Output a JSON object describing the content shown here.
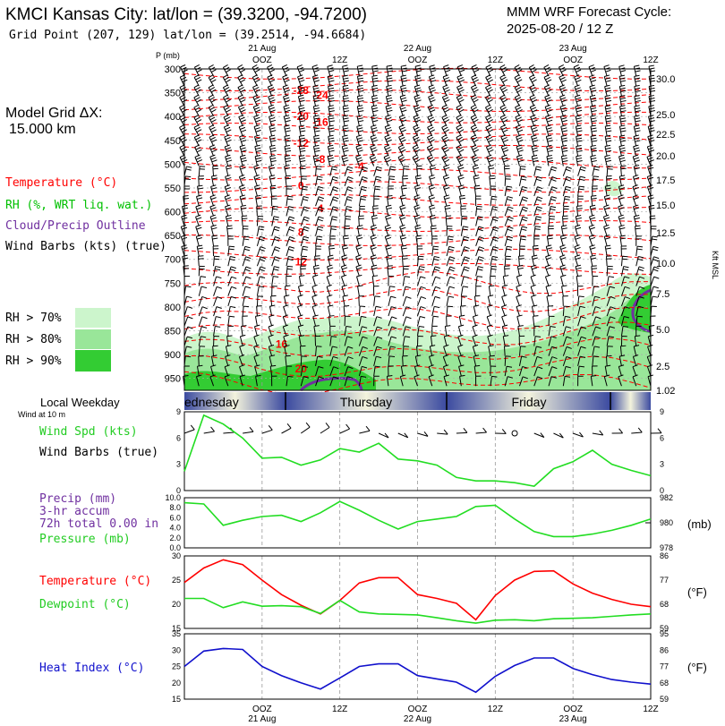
{
  "header": {
    "title": "KMCI Kansas City:  lat/lon = (39.3200, -94.7200)",
    "subtitle": "Grid Point (207, 129) lat/lon = (39.2514, -94.6684)",
    "cycle_title": "MMM WRF Forecast Cycle:",
    "cycle_value": "2025-08-20 / 12  Z"
  },
  "time_axis": {
    "labels": [
      "21 Aug\nOOZ",
      "12Z",
      "22 Aug\nOOZ",
      "12Z",
      "23 Aug\nOOZ",
      "12Z"
    ],
    "top_dates": [
      "21 Aug",
      "22 Aug",
      "23 Aug"
    ],
    "top_hours": [
      "OOZ",
      "12Z",
      "OOZ",
      "12Z",
      "OOZ",
      "12Z"
    ],
    "bottom_hours": [
      "OOZ",
      "12Z",
      "OOZ",
      "12Z",
      "OOZ",
      "12Z"
    ],
    "bottom_dates": [
      "21 Aug",
      "22 Aug",
      "23 Aug"
    ]
  },
  "left_panel": {
    "grid_label": "Model Grid ΔX:",
    "grid_value": "15.000 km",
    "legend_temperature": "Temperature (°C)",
    "legend_rh": "RH (%, WRT liq. wat.)",
    "legend_cloud": "Cloud/Precip Outline",
    "legend_wind": "Wind Barbs (kts) (true)",
    "rh_levels": [
      "RH > 70%",
      "RH > 80%",
      "RH > 90%"
    ],
    "local_weekday": "Local Weekday",
    "wind_at_10m": "Wind at 10 m",
    "wind_spd": "Wind Spd (kts)",
    "wind_barbs": "Wind Barbs (true)",
    "precip": "Precip (mm)",
    "precip_accum": "3-hr accum",
    "precip_total": "72h total 0.00 in",
    "pressure": "Pressure (mb)",
    "temperature": "Temperature (°C)",
    "dewpoint": "Dewpoint (°C)",
    "heat_index": "Heat Index (°C)"
  },
  "colors": {
    "temperature": "#ff0000",
    "rh_label": "#ff0000",
    "rh_legend_text": "#00c000",
    "cloud": "#7030a0",
    "green": "#22dd22",
    "heat": "#1010cc",
    "rh70": "#ccf5cc",
    "rh80": "#99e699",
    "rh90": "#33cc33"
  },
  "chart_data": [
    {
      "type": "heatmap",
      "panel": "upper-air cross section",
      "ylabel_left": "P (mb)",
      "ylabel_right": "Kft MSL",
      "pressure_ticks": [
        300,
        350,
        400,
        450,
        500,
        550,
        600,
        650,
        700,
        750,
        800,
        850,
        900,
        950
      ],
      "kft_ticks": [
        "30.0",
        "25.0",
        "22.5",
        "20.0",
        "17.5",
        "15.0",
        "12.5",
        "10.0",
        "7.5",
        "5.0",
        "2.5",
        "1.02"
      ],
      "temperature_labels": [
        {
          "value": "-28",
          "hour": 18,
          "p": 345
        },
        {
          "value": "-24",
          "hour": 21,
          "p": 355
        },
        {
          "value": "-20",
          "hour": 18,
          "p": 400
        },
        {
          "value": "-16",
          "hour": 21,
          "p": 412
        },
        {
          "value": "-12",
          "hour": 18,
          "p": 456
        },
        {
          "value": "-8",
          "hour": 21,
          "p": 490
        },
        {
          "value": "-4",
          "hour": 27,
          "p": 505
        },
        {
          "value": "0",
          "hour": 18,
          "p": 545
        },
        {
          "value": "4",
          "hour": 21,
          "p": 593
        },
        {
          "value": "8",
          "hour": 18,
          "p": 643
        },
        {
          "value": "12",
          "hour": 18,
          "p": 705
        },
        {
          "value": "16",
          "hour": 15,
          "p": 878
        },
        {
          "value": "20",
          "hour": 18,
          "p": 930
        }
      ],
      "rh_legend": [
        "RH > 70%",
        "RH > 80%",
        "RH > 90%"
      ]
    },
    {
      "type": "line",
      "panel": "10 m wind speed",
      "ylim": [
        0,
        9
      ],
      "yticks": [
        0,
        3,
        6,
        9
      ],
      "x_hours": [
        0,
        3,
        6,
        9,
        12,
        15,
        18,
        21,
        24,
        27,
        30,
        33,
        36,
        39,
        42,
        45,
        48,
        51,
        54,
        57,
        60,
        63,
        66,
        69,
        72
      ],
      "series": [
        {
          "name": "Wind Spd (kts)",
          "values": [
            2.2,
            8.6,
            7.6,
            6.0,
            3.7,
            3.8,
            2.9,
            3.5,
            4.8,
            4.4,
            5.4,
            3.6,
            3.4,
            2.9,
            1.5,
            1.1,
            1.1,
            0.9,
            0.5,
            2.5,
            3.3,
            4.6,
            3.0,
            2.3,
            1.7
          ]
        }
      ]
    },
    {
      "type": "line",
      "panel": "precip and pressure",
      "yticks_left": [
        "0.0",
        "2.0",
        "4.0",
        "6.0",
        "8.0",
        "10.0"
      ],
      "yticks_right": [
        978,
        980,
        982
      ],
      "ylim_right": [
        978,
        982
      ],
      "right_label": "(mb)",
      "x_hours": [
        0,
        3,
        6,
        9,
        12,
        15,
        18,
        21,
        24,
        27,
        30,
        33,
        36,
        39,
        42,
        45,
        48,
        51,
        54,
        57,
        60,
        63,
        66,
        69,
        72
      ],
      "series": [
        {
          "name": "Pressure (mb)",
          "values": [
            981.6,
            981.5,
            979.8,
            980.2,
            980.5,
            980.6,
            980.1,
            980.8,
            981.7,
            981.0,
            980.2,
            979.5,
            980.1,
            980.3,
            980.5,
            981.3,
            981.4,
            980.3,
            979.3,
            978.9,
            978.9,
            979.1,
            979.4,
            979.8,
            980.3
          ]
        },
        {
          "name": "Precip (mm)",
          "values": [
            0,
            0,
            0,
            0,
            0,
            0,
            0,
            0,
            0,
            0,
            0,
            0,
            0,
            0,
            0,
            0,
            0,
            0,
            0,
            0,
            0,
            0,
            0,
            0,
            0
          ]
        }
      ]
    },
    {
      "type": "line",
      "panel": "temperature and dewpoint",
      "ylim": [
        15,
        30
      ],
      "yticks_left": [
        15,
        20,
        25,
        30
      ],
      "yticks_right": [
        59,
        68,
        77,
        86
      ],
      "right_label": "(°F)",
      "x_hours": [
        0,
        3,
        6,
        9,
        12,
        15,
        18,
        21,
        24,
        27,
        30,
        33,
        36,
        39,
        42,
        45,
        48,
        51,
        54,
        57,
        60,
        63,
        66,
        69,
        72
      ],
      "series": [
        {
          "name": "Temperature (°C)",
          "values": [
            24.5,
            27.5,
            29.2,
            28.2,
            25.0,
            22.0,
            19.8,
            18.0,
            20.8,
            24.4,
            25.5,
            25.5,
            22.0,
            21.2,
            20.2,
            16.8,
            21.8,
            25.0,
            26.8,
            26.9,
            24.2,
            22.3,
            21.0,
            20.0,
            19.5
          ]
        },
        {
          "name": "Dewpoint (°C)",
          "values": [
            21.2,
            21.2,
            19.3,
            20.5,
            19.6,
            19.7,
            19.5,
            18.1,
            20.8,
            18.4,
            18.0,
            17.9,
            17.8,
            17.2,
            16.6,
            16.1,
            16.7,
            16.8,
            16.6,
            17.0,
            17.1,
            17.2,
            17.5,
            17.8,
            18.0
          ]
        }
      ]
    },
    {
      "type": "line",
      "panel": "heat index",
      "ylim": [
        15,
        35
      ],
      "yticks_left": [
        15,
        20,
        25,
        30,
        35
      ],
      "yticks_right": [
        59,
        68,
        77,
        86,
        95
      ],
      "right_label": "(°F)",
      "x_hours": [
        0,
        3,
        6,
        9,
        12,
        15,
        18,
        21,
        24,
        27,
        30,
        33,
        36,
        39,
        42,
        45,
        48,
        51,
        54,
        57,
        60,
        63,
        66,
        69,
        72
      ],
      "series": [
        {
          "name": "Heat Index (°C)",
          "values": [
            25.0,
            29.7,
            30.5,
            30.2,
            25.0,
            22.2,
            20.0,
            18.1,
            21.5,
            25.0,
            25.8,
            25.8,
            22.2,
            21.2,
            20.2,
            17.1,
            22.0,
            25.3,
            27.6,
            27.6,
            24.4,
            22.5,
            21.0,
            20.2,
            19.6
          ]
        }
      ]
    }
  ],
  "weekday_bar": {
    "days": [
      "ednesday",
      "Thursday",
      "Friday"
    ]
  }
}
